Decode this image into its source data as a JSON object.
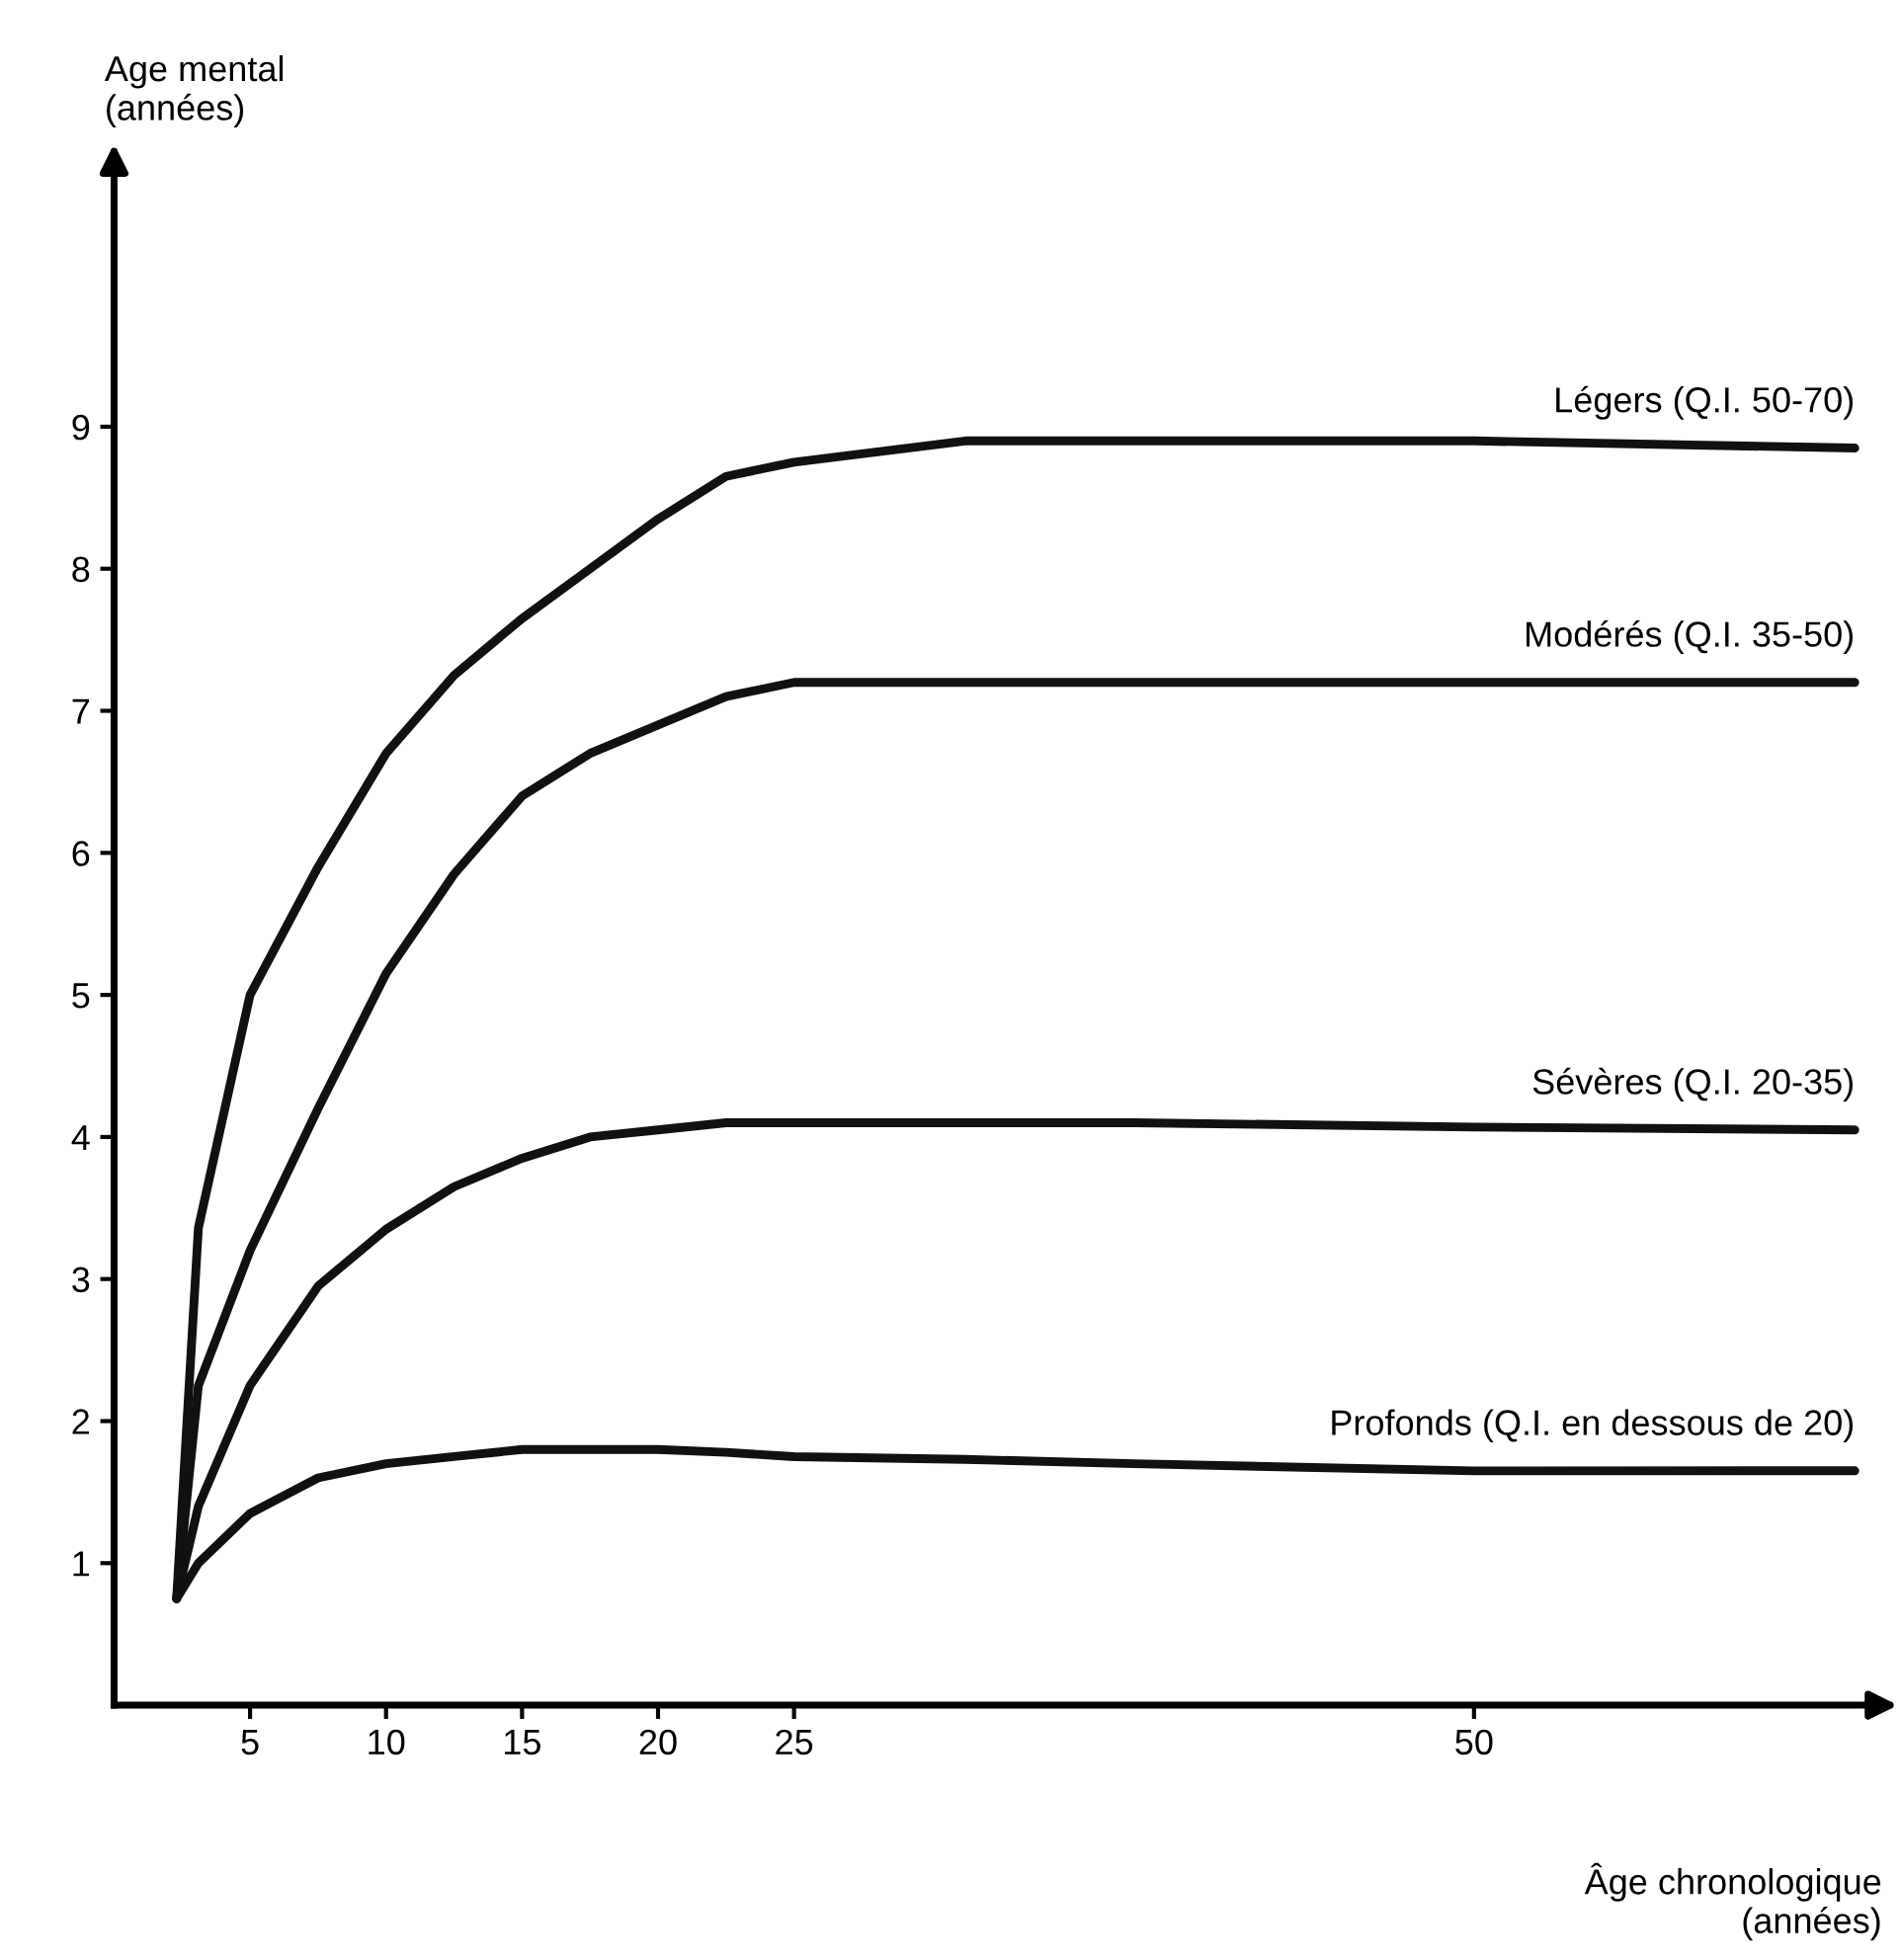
{
  "chart_data": {
    "type": "line",
    "ylabel": "Age mental\n(années)",
    "xlabel": "Âge chronologique\n(années)",
    "xlim": [
      0,
      65
    ],
    "ylim": [
      0,
      10.9
    ],
    "xticks": [
      5,
      10,
      15,
      20,
      25,
      50
    ],
    "yticks": [
      1,
      2,
      3,
      4,
      5,
      6,
      7,
      8,
      9
    ],
    "grid": false,
    "legend": false,
    "marker": "none",
    "line_style": "solid",
    "x": [
      2.3,
      3.1,
      5,
      7.5,
      10,
      12.5,
      15,
      17.5,
      20,
      22.5,
      25,
      31.3,
      37.5,
      50,
      64
    ],
    "series": [
      {
        "name": "Légers (Q.I. 50-70)",
        "color": "#111111",
        "values": [
          0.75,
          3.36,
          5.0,
          5.9,
          6.7,
          7.25,
          7.65,
          8.0,
          8.35,
          8.65,
          8.75,
          8.9,
          8.9,
          8.9,
          8.85
        ]
      },
      {
        "name": "Modérés (Q.I. 35-50)",
        "color": "#111111",
        "values": [
          0.75,
          2.25,
          3.2,
          4.2,
          5.15,
          5.85,
          6.4,
          6.7,
          6.9,
          7.1,
          7.2,
          7.2,
          7.2,
          7.2,
          7.2
        ]
      },
      {
        "name": "Sévères (Q.I. 20-35)",
        "color": "#111111",
        "values": [
          0.75,
          1.4,
          2.25,
          2.95,
          3.35,
          3.65,
          3.85,
          4.0,
          4.05,
          4.1,
          4.1,
          4.1,
          4.1,
          4.07,
          4.05
        ]
      },
      {
        "name": "Profonds (Q.I. en dessous de 20)",
        "color": "#111111",
        "values": [
          0.75,
          1.0,
          1.35,
          1.6,
          1.7,
          1.75,
          1.8,
          1.8,
          1.8,
          1.78,
          1.75,
          1.73,
          1.7,
          1.65,
          1.65
        ]
      }
    ]
  }
}
